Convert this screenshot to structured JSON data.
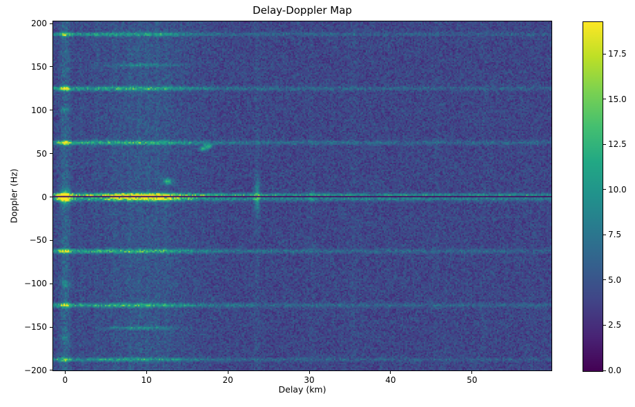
{
  "chart_data": {
    "type": "heatmap",
    "title": "Delay-Doppler Map",
    "xlabel": "Delay (km)",
    "ylabel": "Doppler (Hz)",
    "colormap": "viridis",
    "xlim": [
      -1.55,
      59.85
    ],
    "ylim": [
      -200.8,
      203.2
    ],
    "x_ticks": [
      0,
      10,
      20,
      30,
      40,
      50
    ],
    "x_tick_labels": [
      "0",
      "10",
      "20",
      "30",
      "40",
      "50"
    ],
    "y_ticks": [
      200,
      150,
      100,
      50,
      0,
      -50,
      -100,
      -150,
      -200
    ],
    "y_tick_labels": [
      "200",
      "150",
      "100",
      "50",
      "0",
      "−50",
      "−100",
      "−150",
      "−200"
    ],
    "colorbar": {
      "vmin": 0.0,
      "vmax": 19.3,
      "ticks": [
        0.0,
        2.5,
        5.0,
        7.5,
        10.0,
        12.5,
        15.0,
        17.5
      ],
      "tick_labels": [
        "0.0",
        "2.5",
        "5.0",
        "7.5",
        "10.0",
        "12.5",
        "15.0",
        "17.5"
      ]
    },
    "background_noise": {
      "base": 4.1,
      "amplitude": 2.3
    },
    "vertical_features": [
      {
        "delay": 0.0,
        "amp": 2.2,
        "sigma": 0.45
      },
      {
        "delay": 9.8,
        "amp": 1.0,
        "sigma": 4.2
      },
      {
        "delay": 2.0,
        "amp": 0.5,
        "sigma": 0.2
      },
      {
        "delay": 3.9,
        "amp": 0.5,
        "sigma": 0.2
      },
      {
        "delay": 6.1,
        "amp": 0.45,
        "sigma": 0.2
      },
      {
        "delay": 8.0,
        "amp": 0.5,
        "sigma": 0.2
      },
      {
        "delay": 9.1,
        "amp": 0.5,
        "sigma": 0.2
      },
      {
        "delay": 10.2,
        "amp": 0.55,
        "sigma": 0.2
      },
      {
        "delay": 11.3,
        "amp": 0.5,
        "sigma": 0.2
      },
      {
        "delay": 12.4,
        "amp": 0.45,
        "sigma": 0.2
      },
      {
        "delay": 23.6,
        "amp": 0.7,
        "sigma": 0.2
      },
      {
        "delay": 30.3,
        "amp": 0.4,
        "sigma": 0.2
      },
      {
        "delay": 35.5,
        "amp": 0.55,
        "sigma": 0.25
      },
      {
        "delay": 45.7,
        "amp": 0.35,
        "sigma": 0.2
      },
      {
        "delay": 51.5,
        "amp": 0.3,
        "sigma": 0.2
      }
    ],
    "horizontal_lines": [
      {
        "doppler": 187.5,
        "amp": 4.8,
        "width": 1.5,
        "type": "main"
      },
      {
        "doppler": 125.0,
        "amp": 5.6,
        "width": 1.7,
        "type": "main"
      },
      {
        "doppler": 62.5,
        "amp": 6.2,
        "width": 1.7,
        "type": "main"
      },
      {
        "doppler": 0.0,
        "amp": 9.5,
        "width": 1.7,
        "type": "zero"
      },
      {
        "doppler": -62.5,
        "amp": 6.2,
        "width": 1.7,
        "type": "main"
      },
      {
        "doppler": -125.0,
        "amp": 5.6,
        "width": 1.7,
        "type": "main"
      },
      {
        "doppler": -187.5,
        "amp": 4.5,
        "width": 1.5,
        "type": "main"
      },
      {
        "doppler": 152.0,
        "amp": 2.0,
        "width": 1.4,
        "type": "partial"
      },
      {
        "doppler": -151.0,
        "amp": 2.3,
        "width": 1.4,
        "type": "partial"
      }
    ],
    "point_targets": [
      {
        "delay": 0.0,
        "doppler": 0.0,
        "amp": 8.0,
        "sx": 0.45,
        "sy": 6.0
      },
      {
        "delay": 10.3,
        "doppler": 0.0,
        "amp": 5.0,
        "sx": 2.6,
        "sy": 3.2
      },
      {
        "delay": 12.6,
        "doppler": 18.0,
        "amp": 8.0,
        "sx": 0.4,
        "sy": 2.3
      },
      {
        "delay": 17.0,
        "doppler": 55.5,
        "amp": 7.5,
        "sx": 0.35,
        "sy": 1.8
      },
      {
        "delay": 17.6,
        "doppler": 58.5,
        "amp": 7.5,
        "sx": 0.35,
        "sy": 1.8
      },
      {
        "delay": 23.6,
        "doppler": 0.0,
        "amp": 5.0,
        "sx": 0.25,
        "sy": 13.0
      },
      {
        "delay": 30.3,
        "doppler": 1.5,
        "amp": 3.0,
        "sx": 0.3,
        "sy": 4.0
      },
      {
        "delay": 0.0,
        "doppler": -100.0,
        "amp": 3.0,
        "sx": 0.4,
        "sy": 3.0
      },
      {
        "delay": 0.0,
        "doppler": 100.0,
        "amp": 2.5,
        "sx": 0.4,
        "sy": 3.0
      },
      {
        "delay": 0.0,
        "doppler": -163.0,
        "amp": 2.2,
        "sx": 0.4,
        "sy": 2.5
      }
    ],
    "zero_doppler_notch": {
      "half_width_hz": 0.95,
      "value": 0.8
    }
  }
}
